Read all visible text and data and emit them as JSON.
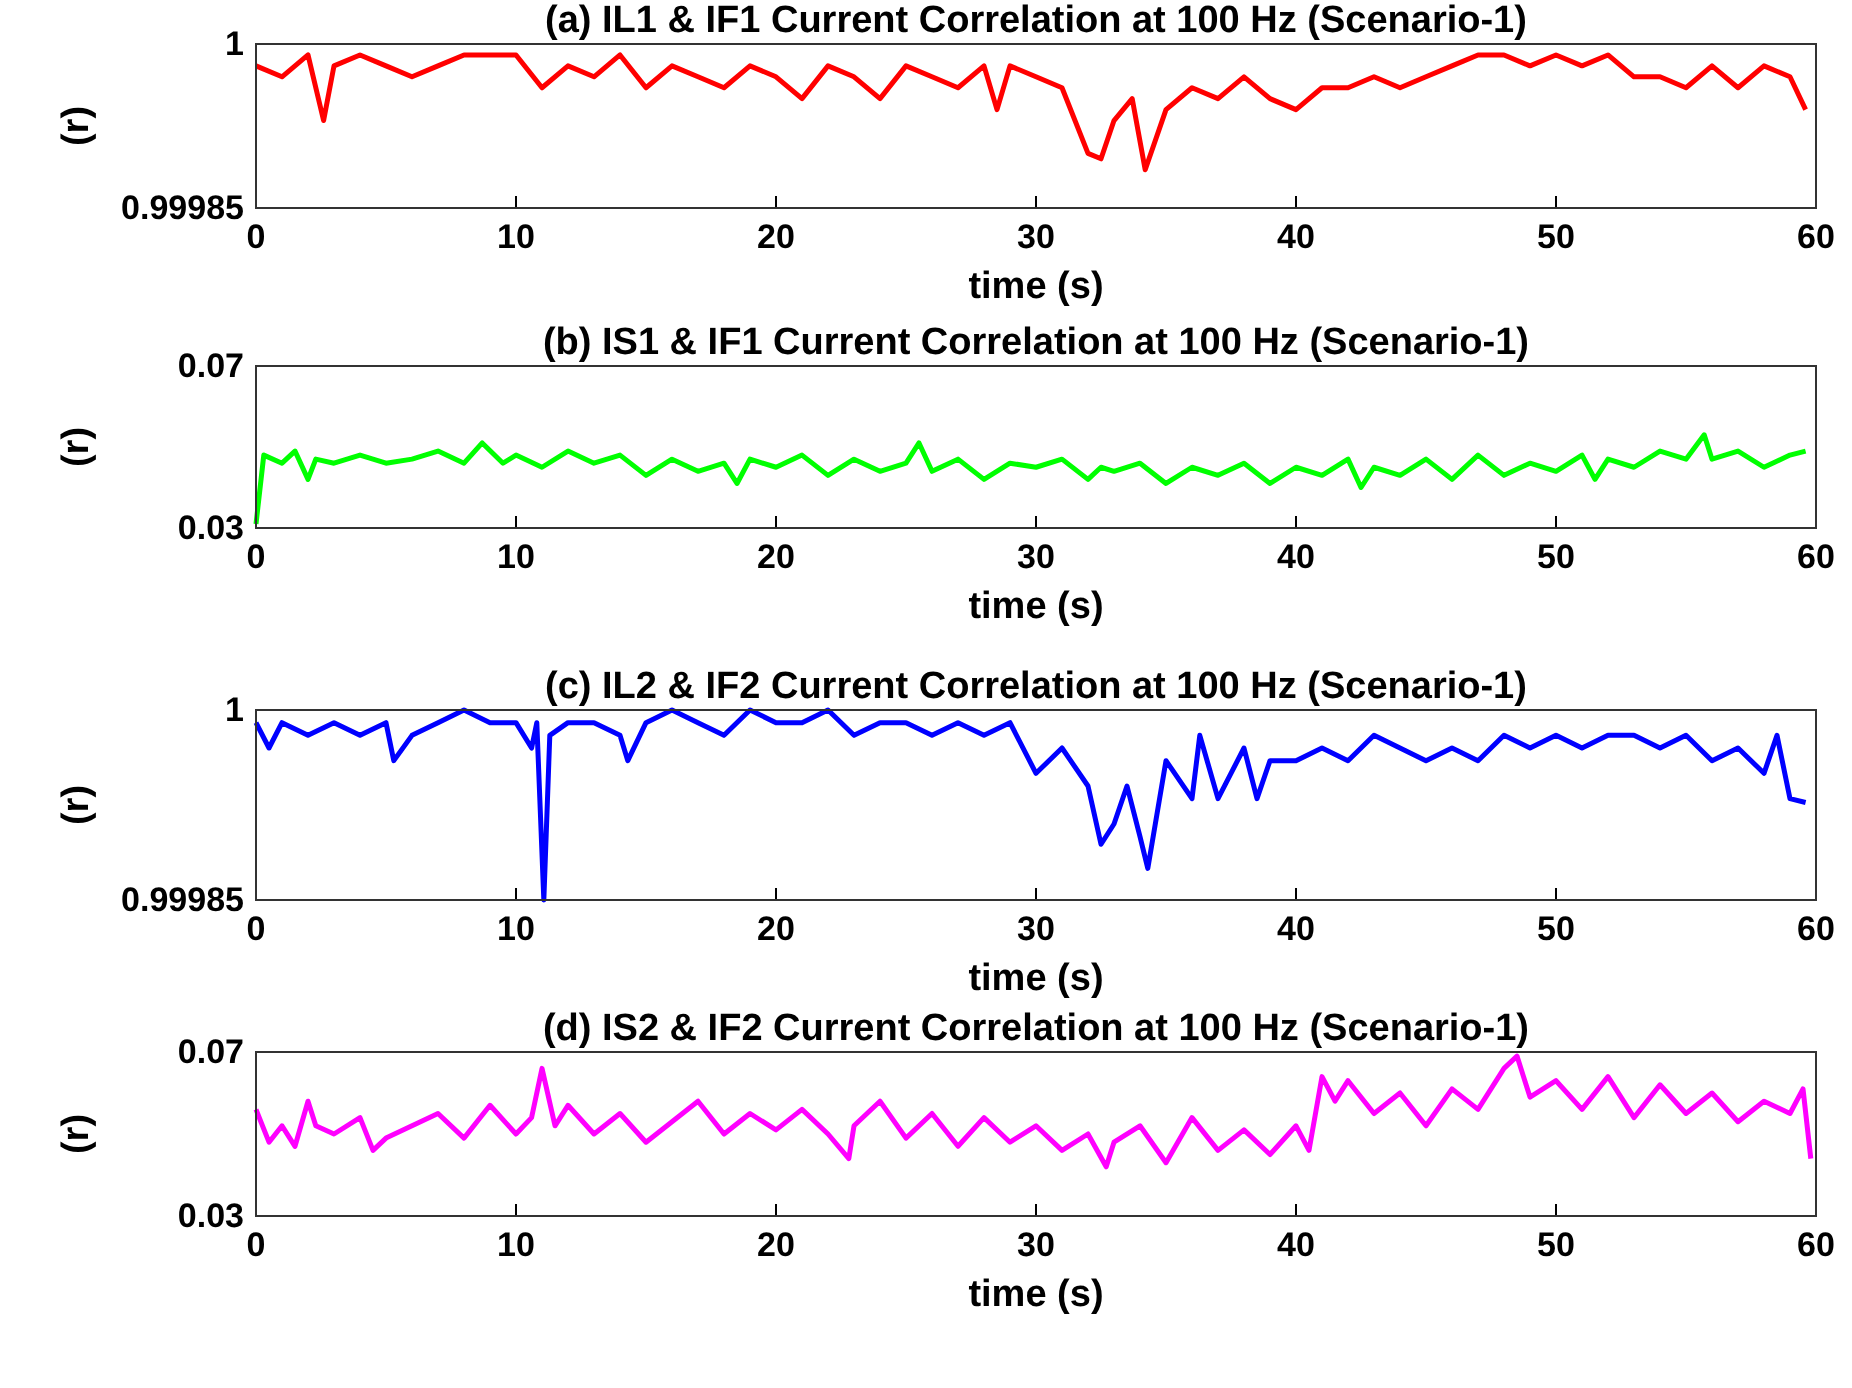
{
  "chart_data": [
    {
      "type": "line",
      "title": "(a) IL1 & IF1 Current Correlation at 100 Hz (Scenario-1)",
      "xlabel": "time (s)",
      "ylabel": "(r)",
      "xlim": [
        0,
        60
      ],
      "ylim": [
        0.99985,
        1
      ],
      "xticks": [
        0,
        10,
        20,
        30,
        40,
        50,
        60
      ],
      "yticks": [
        0.99985,
        1
      ],
      "x": [
        0,
        1,
        2,
        2.6,
        3,
        4,
        5,
        6,
        7,
        8,
        9,
        10,
        11,
        12,
        13,
        14,
        15,
        16,
        17,
        18,
        19,
        20,
        21,
        22,
        23,
        24,
        25,
        26,
        27,
        28,
        28.5,
        29,
        30,
        31,
        32,
        32.5,
        33,
        33.7,
        34.2,
        35,
        36,
        37,
        38,
        39,
        40,
        41,
        42,
        43,
        44,
        45,
        46,
        47,
        48,
        49,
        50,
        51,
        52,
        53,
        54,
        55,
        56,
        57,
        58,
        59,
        59.6
      ],
      "series": [
        {
          "color": "#ff0000",
          "values": [
            0.99998,
            0.99997,
            0.99999,
            0.99993,
            0.99998,
            0.99999,
            0.99998,
            0.99997,
            0.99998,
            0.99999,
            0.99999,
            0.99999,
            0.99996,
            0.99998,
            0.99997,
            0.99999,
            0.99996,
            0.99998,
            0.99997,
            0.99996,
            0.99998,
            0.99997,
            0.99995,
            0.99998,
            0.99997,
            0.99995,
            0.99998,
            0.99997,
            0.99996,
            0.99998,
            0.99994,
            0.99998,
            0.99997,
            0.99996,
            0.9999,
            0.999895,
            0.99993,
            0.99995,
            0.999885,
            0.99994,
            0.99996,
            0.99995,
            0.99997,
            0.99995,
            0.99994,
            0.99996,
            0.99996,
            0.99997,
            0.99996,
            0.99997,
            0.99998,
            0.99999,
            0.99999,
            0.99998,
            0.99999,
            0.99998,
            0.99999,
            0.99997,
            0.99997,
            0.99996,
            0.99998,
            0.99996,
            0.99998,
            0.99997,
            0.99994
          ]
        }
      ]
    },
    {
      "type": "line",
      "title": "(b) IS1 & IF1 Current Correlation at 100 Hz (Scenario-1)",
      "xlabel": "time (s)",
      "ylabel": "(r)",
      "xlim": [
        0,
        60
      ],
      "ylim": [
        0.03,
        0.07
      ],
      "xticks": [
        0,
        10,
        20,
        30,
        40,
        50,
        60
      ],
      "yticks": [
        0.03,
        0.07
      ],
      "x": [
        0,
        0.3,
        1,
        1.5,
        2,
        2.3,
        3,
        4,
        5,
        6,
        7,
        8,
        8.7,
        9.5,
        10,
        11,
        12,
        13,
        14,
        15,
        16,
        17,
        18,
        18.5,
        19,
        20,
        21,
        22,
        23,
        24,
        25,
        25.5,
        26,
        27,
        28,
        29,
        30,
        31,
        32,
        32.5,
        33,
        34,
        35,
        36,
        37,
        38,
        39,
        40,
        41,
        42,
        42.5,
        43,
        44,
        45,
        46,
        47,
        48,
        49,
        50,
        51,
        51.5,
        52,
        53,
        54,
        55,
        55.7,
        56,
        57,
        58,
        59,
        59.6
      ],
      "series": [
        {
          "color": "#00ff00",
          "values": [
            0.031,
            0.048,
            0.046,
            0.049,
            0.042,
            0.047,
            0.046,
            0.048,
            0.046,
            0.047,
            0.049,
            0.046,
            0.051,
            0.046,
            0.048,
            0.045,
            0.049,
            0.046,
            0.048,
            0.043,
            0.047,
            0.044,
            0.046,
            0.041,
            0.047,
            0.045,
            0.048,
            0.043,
            0.047,
            0.044,
            0.046,
            0.051,
            0.044,
            0.047,
            0.042,
            0.046,
            0.045,
            0.047,
            0.042,
            0.045,
            0.044,
            0.046,
            0.041,
            0.045,
            0.043,
            0.046,
            0.041,
            0.045,
            0.043,
            0.047,
            0.04,
            0.045,
            0.043,
            0.047,
            0.042,
            0.048,
            0.043,
            0.046,
            0.044,
            0.048,
            0.042,
            0.047,
            0.045,
            0.049,
            0.047,
            0.053,
            0.047,
            0.049,
            0.045,
            0.048,
            0.049
          ]
        }
      ]
    },
    {
      "type": "line",
      "title": "(c) IL2 & IF2 Current Correlation at 100 Hz (Scenario-1)",
      "xlabel": "time (s)",
      "ylabel": "(r)",
      "xlim": [
        0,
        60
      ],
      "ylim": [
        0.99985,
        1
      ],
      "xticks": [
        0,
        10,
        20,
        30,
        40,
        50,
        60
      ],
      "yticks": [
        0.99985,
        1
      ],
      "x": [
        0,
        0.5,
        1,
        2,
        3,
        4,
        5,
        5.3,
        6,
        7,
        8,
        9,
        10,
        10.6,
        10.8,
        11.07,
        11.3,
        12,
        13,
        14,
        14.3,
        15,
        16,
        17,
        18,
        19,
        20,
        21,
        22,
        23,
        24,
        25,
        26,
        27,
        28,
        29,
        30,
        31,
        32,
        32.5,
        33,
        33.5,
        34,
        34.3,
        35,
        36,
        36.3,
        37,
        38,
        38.5,
        39,
        40,
        41,
        42,
        43,
        44,
        45,
        46,
        47,
        48,
        49,
        50,
        51,
        52,
        53,
        54,
        55,
        56,
        57,
        58,
        58.5,
        59,
        59.6
      ],
      "series": [
        {
          "color": "#0000ff",
          "values": [
            0.99999,
            0.99997,
            0.99999,
            0.99998,
            0.99999,
            0.99998,
            0.99999,
            0.99996,
            0.99998,
            0.99999,
            1,
            0.99999,
            0.99999,
            0.99997,
            0.99999,
            0.99985,
            0.99998,
            0.99999,
            0.99999,
            0.99998,
            0.99996,
            0.99999,
            1,
            0.99999,
            0.99998,
            1,
            0.99999,
            0.99999,
            1,
            0.99998,
            0.99999,
            0.99999,
            0.99998,
            0.99999,
            0.99998,
            0.99999,
            0.99995,
            0.99997,
            0.99994,
            0.999894,
            0.99991,
            0.99994,
            0.9999,
            0.999875,
            0.99996,
            0.99993,
            0.99998,
            0.99993,
            0.99997,
            0.99993,
            0.99996,
            0.99996,
            0.99997,
            0.99996,
            0.99998,
            0.99997,
            0.99996,
            0.99997,
            0.99996,
            0.99998,
            0.99997,
            0.99998,
            0.99997,
            0.99998,
            0.99998,
            0.99997,
            0.99998,
            0.99996,
            0.99997,
            0.99995,
            0.99998,
            0.99993,
            0.999927
          ]
        }
      ]
    },
    {
      "type": "line",
      "title": "(d) IS2 & IF2 Current Correlation at 100 Hz (Scenario-1)",
      "xlabel": "time (s)",
      "ylabel": "(r)",
      "xlim": [
        0,
        60
      ],
      "ylim": [
        0.03,
        0.07
      ],
      "xticks": [
        0,
        10,
        20,
        30,
        40,
        50,
        60
      ],
      "yticks": [
        0.03,
        0.07
      ],
      "x": [
        0,
        0.5,
        1,
        1.5,
        2,
        2.3,
        3,
        4,
        4.5,
        5,
        6,
        7,
        8,
        9,
        10,
        10.6,
        11,
        11.5,
        12,
        13,
        14,
        15,
        16,
        17,
        18,
        19,
        20,
        21,
        22,
        22.8,
        23,
        24,
        25,
        26,
        27,
        28,
        29,
        30,
        31,
        32,
        32.7,
        33,
        34,
        35,
        36,
        37,
        38,
        39,
        40,
        40.5,
        41,
        41.5,
        42,
        43,
        44,
        45,
        46,
        47,
        48,
        48.5,
        49,
        50,
        51,
        52,
        53,
        54,
        55,
        56,
        57,
        58,
        59,
        59.5,
        59.8
      ],
      "series": [
        {
          "color": "#ff00ff",
          "values": [
            0.056,
            0.048,
            0.052,
            0.047,
            0.058,
            0.052,
            0.05,
            0.054,
            0.046,
            0.049,
            0.052,
            0.055,
            0.049,
            0.057,
            0.05,
            0.054,
            0.066,
            0.052,
            0.057,
            0.05,
            0.055,
            0.048,
            0.053,
            0.058,
            0.05,
            0.055,
            0.051,
            0.056,
            0.05,
            0.044,
            0.052,
            0.058,
            0.049,
            0.055,
            0.047,
            0.054,
            0.048,
            0.052,
            0.046,
            0.05,
            0.042,
            0.048,
            0.052,
            0.043,
            0.054,
            0.046,
            0.051,
            0.045,
            0.052,
            0.046,
            0.064,
            0.058,
            0.063,
            0.055,
            0.06,
            0.052,
            0.061,
            0.056,
            0.066,
            0.069,
            0.059,
            0.063,
            0.056,
            0.064,
            0.054,
            0.062,
            0.055,
            0.06,
            0.053,
            0.058,
            0.055,
            0.061,
            0.044
          ]
        }
      ]
    }
  ]
}
